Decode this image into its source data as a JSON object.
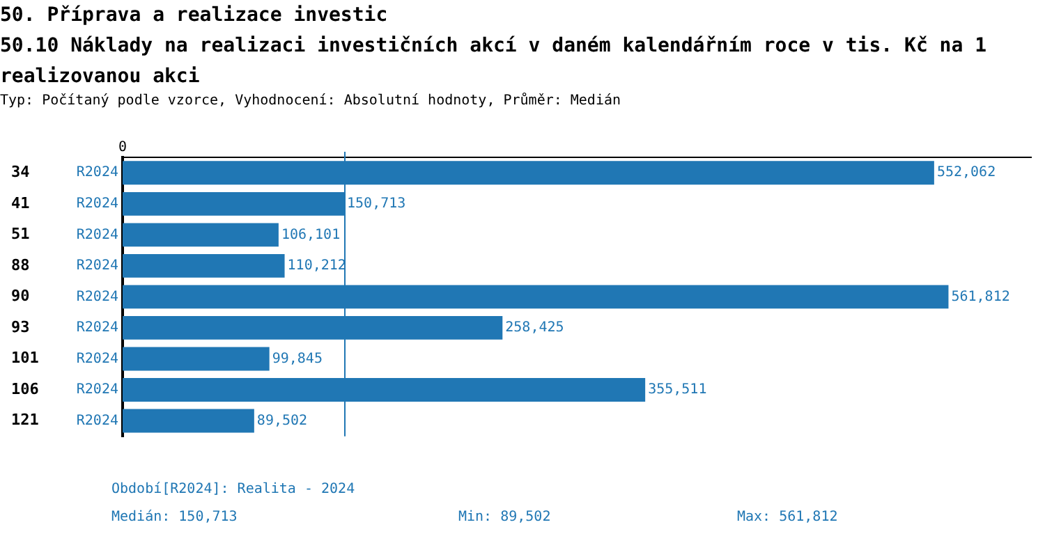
{
  "chart_data": {
    "type": "bar",
    "orientation": "horizontal",
    "title": "50. Příprava a realizace investic",
    "subtitle": "50.10 Náklady na realizaci investičních akcí v daném kalendářním roce v tis. Kč na 1 realizovanou akci",
    "categories": [
      "34",
      "41",
      "51",
      "88",
      "90",
      "93",
      "101",
      "106",
      "121"
    ],
    "series": [
      {
        "name": "R2024",
        "color": "#2077b4",
        "values": [
          552062,
          150713,
          106101,
          110212,
          561812,
          258425,
          99845,
          355511,
          89502
        ],
        "value_labels": [
          "552,062",
          "150,713",
          "106,101",
          "110,212",
          "561,812",
          "258,425",
          "99,845",
          "355,511",
          "89,502"
        ]
      }
    ],
    "legend": false,
    "ref_lines": [
      {
        "axis": "x",
        "value": 150713,
        "color": "#2077b4"
      }
    ],
    "annotations": [
      "Typ: Počítaný podle vzorce, Vyhodnocení: Absolutní hodnoty, Průměr: Medián",
      "Období[R2024]: Realita - 2024",
      "Medián: 150,713",
      "Min: 89,502",
      "Max: 561,812",
      "0"
    ]
  }
}
